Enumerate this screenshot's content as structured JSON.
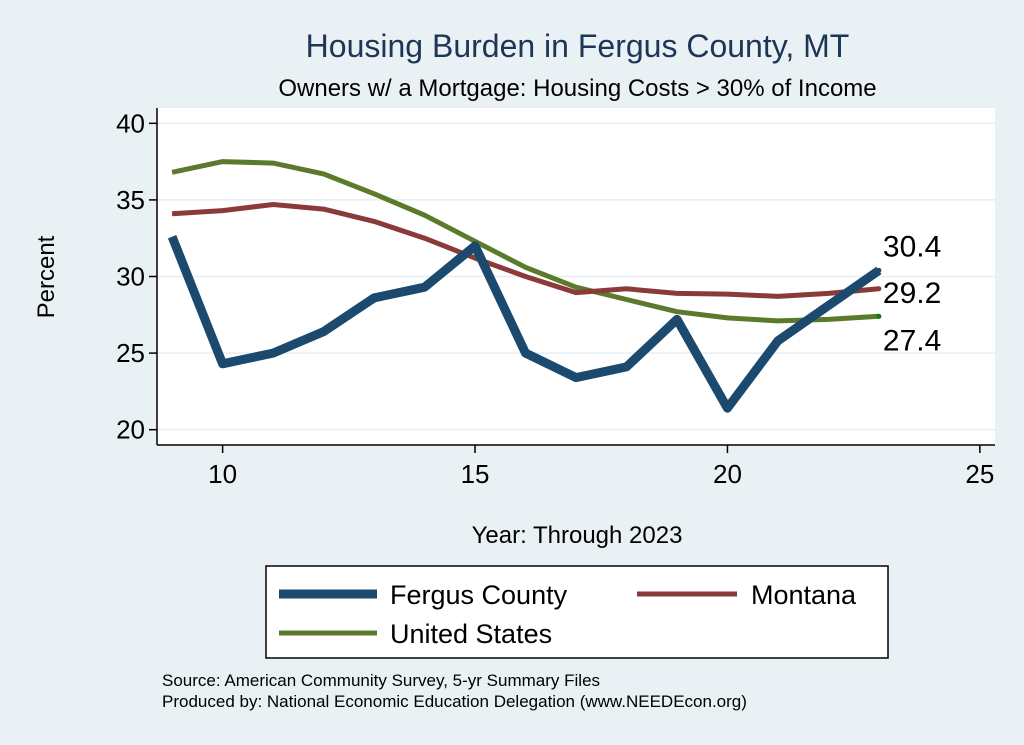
{
  "chart_data": {
    "type": "line",
    "title": "Housing Burden in Fergus County, MT",
    "subtitle": "Owners w/ a Mortgage: Housing Costs > 30% of Income",
    "xlabel": "Year: Through 2023",
    "ylabel": "Percent",
    "xlim": [
      8.7,
      25.3
    ],
    "ylim": [
      19,
      41
    ],
    "xticks": [
      10,
      15,
      20,
      25
    ],
    "yticks": [
      20,
      25,
      30,
      35,
      40
    ],
    "grid": "horizontal",
    "legend": {
      "position": "bottom",
      "items": [
        "Fergus County",
        "Montana",
        "United States"
      ]
    },
    "series": [
      {
        "name": "Fergus County",
        "color": "#1b4a6e",
        "x": [
          9,
          10,
          11,
          12,
          13,
          14,
          15,
          16,
          17,
          18,
          19,
          20,
          21,
          22,
          23
        ],
        "values": [
          32.6,
          24.3,
          25.0,
          26.4,
          28.6,
          29.3,
          32.0,
          25.0,
          23.4,
          24.1,
          27.2,
          21.4,
          25.8,
          28.1,
          30.4
        ],
        "end_label": "30.4"
      },
      {
        "name": "Montana",
        "color": "#8b3a3a",
        "x": [
          9,
          10,
          11,
          12,
          13,
          14,
          15,
          16,
          17,
          18,
          19,
          20,
          21,
          22,
          23
        ],
        "values": [
          34.1,
          34.3,
          34.7,
          34.4,
          33.6,
          32.5,
          31.2,
          30.0,
          28.95,
          29.2,
          28.9,
          28.85,
          28.7,
          28.9,
          29.2
        ],
        "end_label": "29.2"
      },
      {
        "name": "United States",
        "color": "#5b7a2b",
        "x": [
          9,
          10,
          11,
          12,
          13,
          14,
          15,
          16,
          17,
          18,
          19,
          20,
          21,
          22,
          23
        ],
        "values": [
          36.8,
          37.5,
          37.4,
          36.7,
          35.4,
          34.0,
          32.3,
          30.6,
          29.3,
          28.5,
          27.7,
          27.3,
          27.1,
          27.2,
          27.4
        ],
        "end_label": "27.4"
      }
    ]
  },
  "footer": {
    "source": "Source: American Community Survey, 5-yr Summary Files",
    "produced": "Produced by: National Economic Education Delegation (www.NEEDEcon.org)"
  }
}
